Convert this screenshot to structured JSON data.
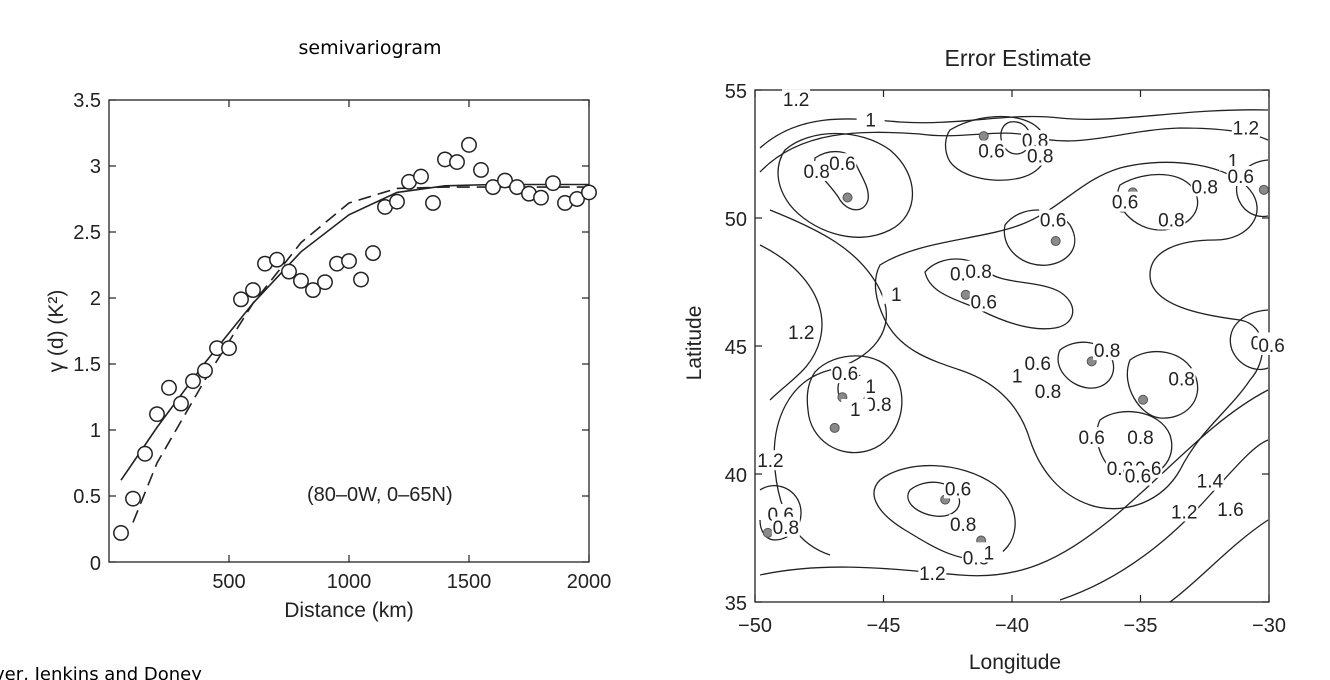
{
  "chart_data": [
    {
      "type": "scatter",
      "title": "semivariogram",
      "xlabel": "Distance (km)",
      "ylabel": "γ (d) (K²)",
      "xlim": [
        0,
        2000
      ],
      "ylim": [
        0,
        3.5
      ],
      "xticks": [
        "500",
        "1000",
        "1500",
        "2000"
      ],
      "yticks": [
        "0",
        "0.5",
        "1",
        "1.5",
        "2",
        "2.5",
        "3",
        "3.5"
      ],
      "annotation": "(80–0W, 0–65N)",
      "points": {
        "x": [
          50,
          100,
          150,
          200,
          250,
          300,
          350,
          400,
          450,
          500,
          550,
          600,
          650,
          700,
          750,
          800,
          850,
          900,
          950,
          1000,
          1050,
          1100,
          1150,
          1200,
          1250,
          1300,
          1350,
          1400,
          1450,
          1500,
          1550,
          1600,
          1650,
          1700,
          1750,
          1800,
          1850,
          1900,
          1950,
          2000
        ],
        "y": [
          0.22,
          0.48,
          0.82,
          1.12,
          1.32,
          1.2,
          1.37,
          1.45,
          1.62,
          1.62,
          1.99,
          2.06,
          2.26,
          2.29,
          2.2,
          2.13,
          2.06,
          2.12,
          2.26,
          2.28,
          2.14,
          2.34,
          2.69,
          2.73,
          2.88,
          2.92,
          2.72,
          3.05,
          3.03,
          3.16,
          2.97,
          2.84,
          2.89,
          2.84,
          2.79,
          2.76,
          2.87,
          2.72,
          2.75,
          2.8
        ]
      },
      "fit_solid": {
        "x": [
          50,
          200,
          400,
          600,
          800,
          1000,
          1200,
          1400,
          1600,
          1800,
          2000
        ],
        "y": [
          0.62,
          1.02,
          1.51,
          1.96,
          2.35,
          2.63,
          2.8,
          2.85,
          2.86,
          2.86,
          2.86
        ]
      },
      "fit_dashed": {
        "x": [
          100,
          200,
          400,
          600,
          800,
          1000,
          1200,
          1400,
          1600,
          1800,
          2000
        ],
        "y": [
          0.3,
          0.75,
          1.38,
          1.96,
          2.42,
          2.72,
          2.83,
          2.84,
          2.84,
          2.84,
          2.84
        ]
      }
    },
    {
      "type": "contour",
      "title": "Error Estimate",
      "xlabel": "Longitude",
      "ylabel": "Latitude",
      "xlim": [
        -50,
        -30
      ],
      "ylim": [
        35,
        55
      ],
      "xticks": [
        "−50",
        "−45",
        "−40",
        "−35",
        "−30"
      ],
      "yticks": [
        "35",
        "40",
        "45",
        "50",
        "55"
      ],
      "contour_levels": [
        0.6,
        0.8,
        1,
        1.2,
        1.4,
        1.6
      ],
      "observation_sites": {
        "lon": [
          -47.2,
          -46.4,
          -41.1,
          -38.3,
          -41.8,
          -35.3,
          -35.7,
          -30.2,
          -36.9,
          -34.9,
          -46.6,
          -46.9,
          -35.2,
          -42.6,
          -41.2,
          -49.5,
          -29.8
        ],
        "lat": [
          52,
          50.8,
          53.2,
          49.1,
          47.0,
          51.0,
          50.4,
          51.1,
          44.4,
          42.9,
          43.0,
          41.8,
          40.2,
          39.0,
          37.4,
          37.7,
          45.0
        ]
      },
      "contour_labels": {
        "text": [
          "1.2",
          "1",
          "0.8",
          "0.6",
          "0.8",
          "0.6",
          "0.8",
          "1.2",
          "1",
          "0.8",
          "0.6",
          "0.6",
          "0.8",
          "0.6",
          "0.8",
          "1",
          "0.8",
          "0.6",
          "1.2",
          "1",
          "0.8",
          "0.6",
          "0.6",
          "0.8",
          "0.8",
          "0.8",
          "0.6",
          "1",
          "0.6",
          "0.8",
          "1",
          "1.2",
          "0.8",
          "0.6",
          "0.8",
          "0.6",
          "0.8",
          "0.6",
          "0.8",
          "1",
          "1.2",
          "1.2",
          "1.4",
          "1.6",
          "0.6",
          "0.8"
        ],
        "lon": [
          -48.4,
          -45.5,
          -47.6,
          -46.6,
          -39.1,
          -40.8,
          -38.9,
          -30.9,
          -31.4,
          -32.5,
          -31.1,
          -35.6,
          -33.8,
          -38.4,
          -41.9,
          -44.5,
          -30.2,
          -29.9,
          -48.2,
          -39.8,
          -38.6,
          -39.0,
          -41.1,
          -41.3,
          -36.3,
          -33.4,
          -36.9,
          -45.5,
          -46.5,
          -45.2,
          -46.1,
          -49.4,
          -35.0,
          -34.7,
          -35.8,
          -35.1,
          -41.9,
          -42.1,
          -41.4,
          -40.9,
          -43.1,
          -33.3,
          -32.3,
          -31.5,
          -49.0,
          -48.8
        ],
        "lat": [
          54.6,
          53.8,
          51.8,
          52.1,
          53.0,
          52.6,
          52.4,
          53.5,
          52.2,
          51.2,
          51.6,
          50.6,
          49.9,
          49.9,
          47.8,
          47.0,
          45.1,
          45.0,
          45.5,
          43.8,
          43.2,
          44.3,
          46.7,
          47.9,
          44.8,
          43.7,
          41.4,
          43.4,
          43.9,
          42.7,
          42.5,
          40.5,
          41.4,
          40.2,
          40.2,
          39.9,
          38.0,
          39.4,
          36.7,
          36.9,
          36.1,
          38.5,
          39.7,
          38.6,
          38.4,
          37.9
        ]
      }
    }
  ],
  "credits": {
    "left": "ver, Jenkins and Doney"
  }
}
